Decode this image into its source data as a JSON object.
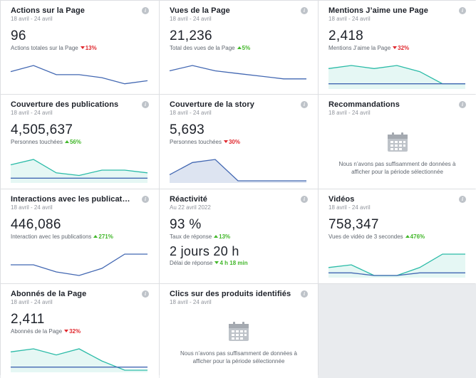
{
  "colors": {
    "blue": "#4267b2",
    "teal": "#2abba7",
    "down": "#e0282e",
    "up": "#42b72a"
  },
  "cards": {
    "actions": {
      "title": "Actions sur la Page",
      "date": "18 avril - 24 avril",
      "value": "96",
      "sub": "Actions totales sur la Page",
      "delta": "13%",
      "trend": "down",
      "series": [
        {
          "color": "blue",
          "values": [
            5,
            7,
            4,
            4,
            3,
            1,
            2
          ]
        }
      ]
    },
    "vues": {
      "title": "Vues de la Page",
      "date": "18 avril - 24 avril",
      "value": "21,236",
      "sub": "Total des vues de la Page",
      "delta": "5%",
      "trend": "up",
      "series": [
        {
          "color": "blue",
          "values": [
            6,
            8,
            6,
            5,
            4,
            3,
            3
          ]
        }
      ]
    },
    "mentions": {
      "title": "Mentions J’aime une Page",
      "date": "18 avril - 24 avril",
      "value": "2,418",
      "sub": "Mentions J’aime la Page",
      "delta": "32%",
      "trend": "down",
      "series": [
        {
          "color": "teal",
          "values": [
            6,
            7,
            6,
            7,
            5,
            1,
            1
          ],
          "fill": true
        },
        {
          "color": "blue",
          "values": [
            1,
            1,
            1,
            1,
            1,
            1,
            1
          ]
        }
      ]
    },
    "couverture": {
      "title": "Couverture des publications",
      "date": "18 avril - 24 avril",
      "value": "4,505,637",
      "sub": "Personnes touchées",
      "delta": "56%",
      "trend": "up",
      "series": [
        {
          "color": "teal",
          "values": [
            6,
            8,
            3,
            2,
            4,
            4,
            3
          ],
          "fill": true
        },
        {
          "color": "blue",
          "values": [
            1,
            1,
            1,
            1,
            1,
            1,
            1
          ]
        }
      ]
    },
    "story": {
      "title": "Couverture de la story",
      "date": "18 avril - 24 avril",
      "value": "5,693",
      "sub": "Personnes touchées",
      "delta": "30%",
      "trend": "down",
      "series": [
        {
          "color": "blue",
          "values": [
            2,
            6,
            7,
            0,
            0,
            0,
            0
          ],
          "fill": true
        }
      ]
    },
    "recommandations": {
      "title": "Recommandations",
      "date": "18 avril - 24 avril",
      "empty_msg": "Nous n’avons pas suffisamment de données à afficher pour la période sélectionnée"
    },
    "interactions": {
      "title": "Interactions avec les publicat…",
      "date": "18 avril - 24 avril",
      "value": "446,086",
      "sub": "Interaction avec les publications",
      "delta": "271%",
      "trend": "up",
      "series": [
        {
          "color": "blue",
          "values": [
            3,
            3,
            1,
            0,
            2,
            6,
            6
          ]
        }
      ]
    },
    "reactivite": {
      "title": "Réactivité",
      "date": "Au 22 avril 2022",
      "value": "93 %",
      "sub": "Taux de réponse",
      "delta": "13%",
      "trend": "up",
      "value2": "2 jours 20 h",
      "sub2": "Délai de réponse",
      "delta2": "4 h 18 min",
      "trend2": "up"
    },
    "videos": {
      "title": "Vidéos",
      "date": "18 avril - 24 avril",
      "value": "758,347",
      "sub": "Vues de vidéo de 3 secondes",
      "delta": "476%",
      "trend": "up",
      "series": [
        {
          "color": "teal",
          "values": [
            3,
            4,
            0,
            0,
            3,
            8,
            8
          ],
          "fill": true
        },
        {
          "color": "blue",
          "values": [
            1,
            1,
            0,
            0,
            1,
            1,
            1
          ]
        }
      ]
    },
    "abonnes": {
      "title": "Abonnés de la Page",
      "date": "18 avril - 24 avril",
      "value": "2,411",
      "sub": "Abonnés de la Page",
      "delta": "32%",
      "trend": "down",
      "series": [
        {
          "color": "teal",
          "values": [
            6,
            7,
            5,
            7,
            3,
            0,
            0
          ],
          "fill": true
        },
        {
          "color": "blue",
          "values": [
            1,
            1,
            1,
            1,
            1,
            1,
            1
          ]
        }
      ]
    },
    "clics": {
      "title": "Clics sur des produits identifiés",
      "date": "18 avril - 24 avril",
      "empty_msg": "Nous n’avons pas suffisamment de données à afficher pour la période sélectionnée"
    }
  }
}
